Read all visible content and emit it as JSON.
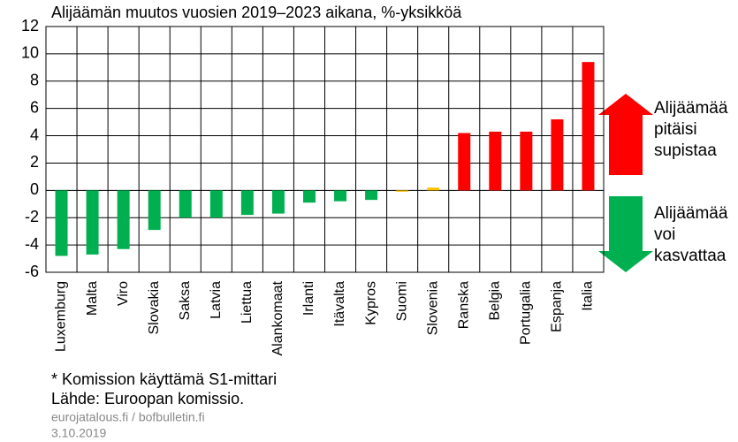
{
  "chart_data": {
    "type": "bar",
    "title": "Alijäämän muutos vuosien 2019–2023 aikana, %-yksikköä",
    "categories": [
      "Luxemburg",
      "Malta",
      "Viro",
      "Slovakia",
      "Saksa",
      "Latvia",
      "Liettua",
      "Alankomaat",
      "Irlanti",
      "Itävalta",
      "Kypros",
      "Suomi",
      "Slovenia",
      "Ranska",
      "Belgia",
      "Portugalia",
      "Espanja",
      "Italia"
    ],
    "values": [
      -4.8,
      -4.7,
      -4.3,
      -2.9,
      -2.0,
      -2.0,
      -1.8,
      -1.7,
      -0.9,
      -0.8,
      -0.7,
      -0.1,
      0.2,
      4.2,
      4.3,
      4.3,
      5.2,
      9.4
    ],
    "colors": [
      "#00b050",
      "#00b050",
      "#00b050",
      "#00b050",
      "#00b050",
      "#00b050",
      "#00b050",
      "#00b050",
      "#00b050",
      "#00b050",
      "#00b050",
      "#ffc000",
      "#ffc000",
      "#ff0000",
      "#ff0000",
      "#ff0000",
      "#ff0000",
      "#ff0000"
    ],
    "ylim": [
      -6,
      12
    ],
    "yticks": [
      -6,
      -4,
      -2,
      0,
      2,
      4,
      6,
      8,
      10,
      12
    ],
    "grid": true,
    "annotations": {
      "up": [
        "Alijäämää",
        "pitäisi",
        "supistaa"
      ],
      "down": [
        "Alijäämää",
        "voi",
        "kasvattaa"
      ]
    },
    "footnotes": [
      "* Komission käyttämä S1-mittari",
      "Lähde: Euroopan komissio."
    ],
    "source": [
      "eurojatalous.fi  / bofbulletin.fi",
      "3.10.2019"
    ]
  }
}
